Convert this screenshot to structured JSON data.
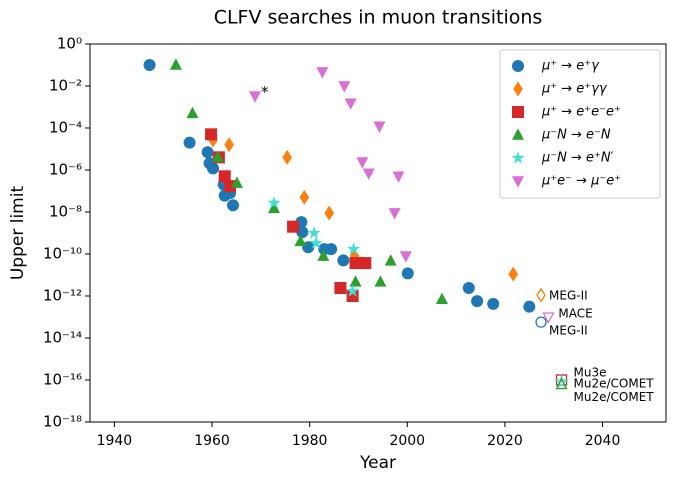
{
  "chart_data": {
    "type": "scatter",
    "title": "CLFV searches in muon transitions",
    "xlabel": "Year",
    "ylabel": "Upper limit",
    "xlim": [
      1935,
      2053
    ],
    "xticks": [
      1940,
      1960,
      1980,
      2000,
      2020,
      2040
    ],
    "ylim": [
      1e-18,
      1
    ],
    "yscale": "log",
    "yticks": [
      {
        "value": 1,
        "label": "10⁰"
      },
      {
        "value": 0.01,
        "label": "10⁻²"
      },
      {
        "value": 0.0001,
        "label": "10⁻⁴"
      },
      {
        "value": 1e-06,
        "label": "10⁻⁶"
      },
      {
        "value": 1e-08,
        "label": "10⁻⁸"
      },
      {
        "value": 1e-10,
        "label": "10⁻¹⁰"
      },
      {
        "value": 1e-12,
        "label": "10⁻¹²"
      },
      {
        "value": 1e-14,
        "label": "10⁻¹⁴"
      },
      {
        "value": 1e-16,
        "label": "10⁻¹⁶"
      },
      {
        "value": 1e-18,
        "label": "10⁻¹⁸"
      }
    ],
    "legend": "upper right",
    "series": [
      {
        "name": "μ⁺ → e⁺γ",
        "color": "#1f77b4",
        "marker": "circle",
        "x": [
          1947.2,
          1955.4,
          1959.1,
          1959.5,
          1960.2,
          1962.4,
          1962.6,
          1963.7,
          1964.3,
          1978.3,
          1978.5,
          1979.7,
          1983,
          1984.4,
          1986.9,
          2000.1,
          2012.6,
          2014.3,
          2017.6,
          2025
        ],
        "values": [
          0.1,
          2e-05,
          7e-06,
          2.1e-06,
          1.2e-06,
          2e-07,
          6e-08,
          8e-08,
          2.1e-08,
          3.3e-09,
          1.1e-09,
          2.1e-10,
          1.7e-10,
          1.7e-10,
          5e-11,
          1.2e-11,
          2.4e-12,
          5.7e-13,
          4.2e-13,
          3.1e-13
        ]
      },
      {
        "name": "μ⁺ → e⁺γγ",
        "color": "#ff7f0e",
        "marker": "diamond",
        "x": [
          1960.2,
          1963.5,
          1975.4,
          1978.9,
          1984,
          1989.2,
          2021.7
        ],
        "values": [
          2.7e-05,
          1.6e-05,
          4e-06,
          5e-08,
          9e-09,
          8e-11,
          1.1e-11
        ]
      },
      {
        "name": "μ⁺ → e⁺e⁻e⁺",
        "color": "#d62728",
        "marker": "square",
        "x": [
          1959.8,
          1961.4,
          1962.6,
          1963.7,
          1976.6,
          1989.4,
          1991.4,
          1986.3,
          1988.8
        ],
        "values": [
          5e-05,
          4e-06,
          5e-07,
          1.7e-07,
          2e-09,
          3.7e-11,
          3.7e-11,
          2.4e-12,
          1e-12
        ]
      },
      {
        "name": "μ⁻N → e⁻N",
        "color": "#2ca02c",
        "marker": "triangle",
        "x": [
          1952.6,
          1956,
          1961.2,
          1965.1,
          1972.7,
          1978.1,
          1982.8,
          1989.4,
          1994.5,
          1996.6,
          2007.1
        ],
        "values": [
          0.1,
          0.0005,
          4e-06,
          2.4e-07,
          1.5e-08,
          4e-10,
          8e-11,
          4.7e-12,
          4.7e-12,
          4.7e-11,
          7e-13
        ]
      },
      {
        "name": "μ⁻N → e⁺N′",
        "color": "#40e0d0",
        "marker": "star",
        "x": [
          1972.7,
          1980.9,
          1981.3,
          1989,
          1988.8
        ],
        "values": [
          2.7e-08,
          1e-09,
          3.3e-10,
          1.7e-10,
          1.7e-12
        ]
      },
      {
        "name": "μ⁺e⁻ → μ⁻e⁺",
        "color": "#da70d6",
        "marker": "triangle-down",
        "x": [
          1968.8,
          1982.6,
          1987.1,
          1988.4,
          1994.3,
          1990.8,
          1992.1,
          1998.2,
          1997.4,
          1999.7
        ],
        "values": [
          0.0033,
          0.047,
          0.01,
          0.0015,
          0.00012,
          2.4e-06,
          7e-07,
          5e-07,
          9e-09,
          8e-11
        ]
      }
    ],
    "annotations": [
      {
        "text": "*",
        "color": "#da70d6",
        "x": 1970.8,
        "y": 0.005
      }
    ],
    "projections": [
      {
        "label": "MEG-II",
        "color": "#ff7f0e",
        "marker": "diamond",
        "x": 2027.4,
        "y": 1.1e-12
      },
      {
        "label": "MACE",
        "color": "#da70d6",
        "marker": "triangle-down",
        "x": 2028.9,
        "y": 1e-13
      },
      {
        "label": "MEG-II",
        "color": "#1f77b4",
        "marker": "circle",
        "x": 2027.4,
        "y": 5.7e-14
      },
      {
        "label": "Mu3e",
        "color": "#d62728",
        "marker": "square",
        "x": 2031.6,
        "y": 1e-16
      },
      {
        "label": "Mu2e/COMET",
        "color": "#40e0d0",
        "marker": "star",
        "x": 2031.6,
        "y": 8e-17
      },
      {
        "label": "Mu2e/COMET",
        "color": "#2ca02c",
        "marker": "triangle",
        "x": 2031.6,
        "y": 6e-17
      }
    ]
  }
}
